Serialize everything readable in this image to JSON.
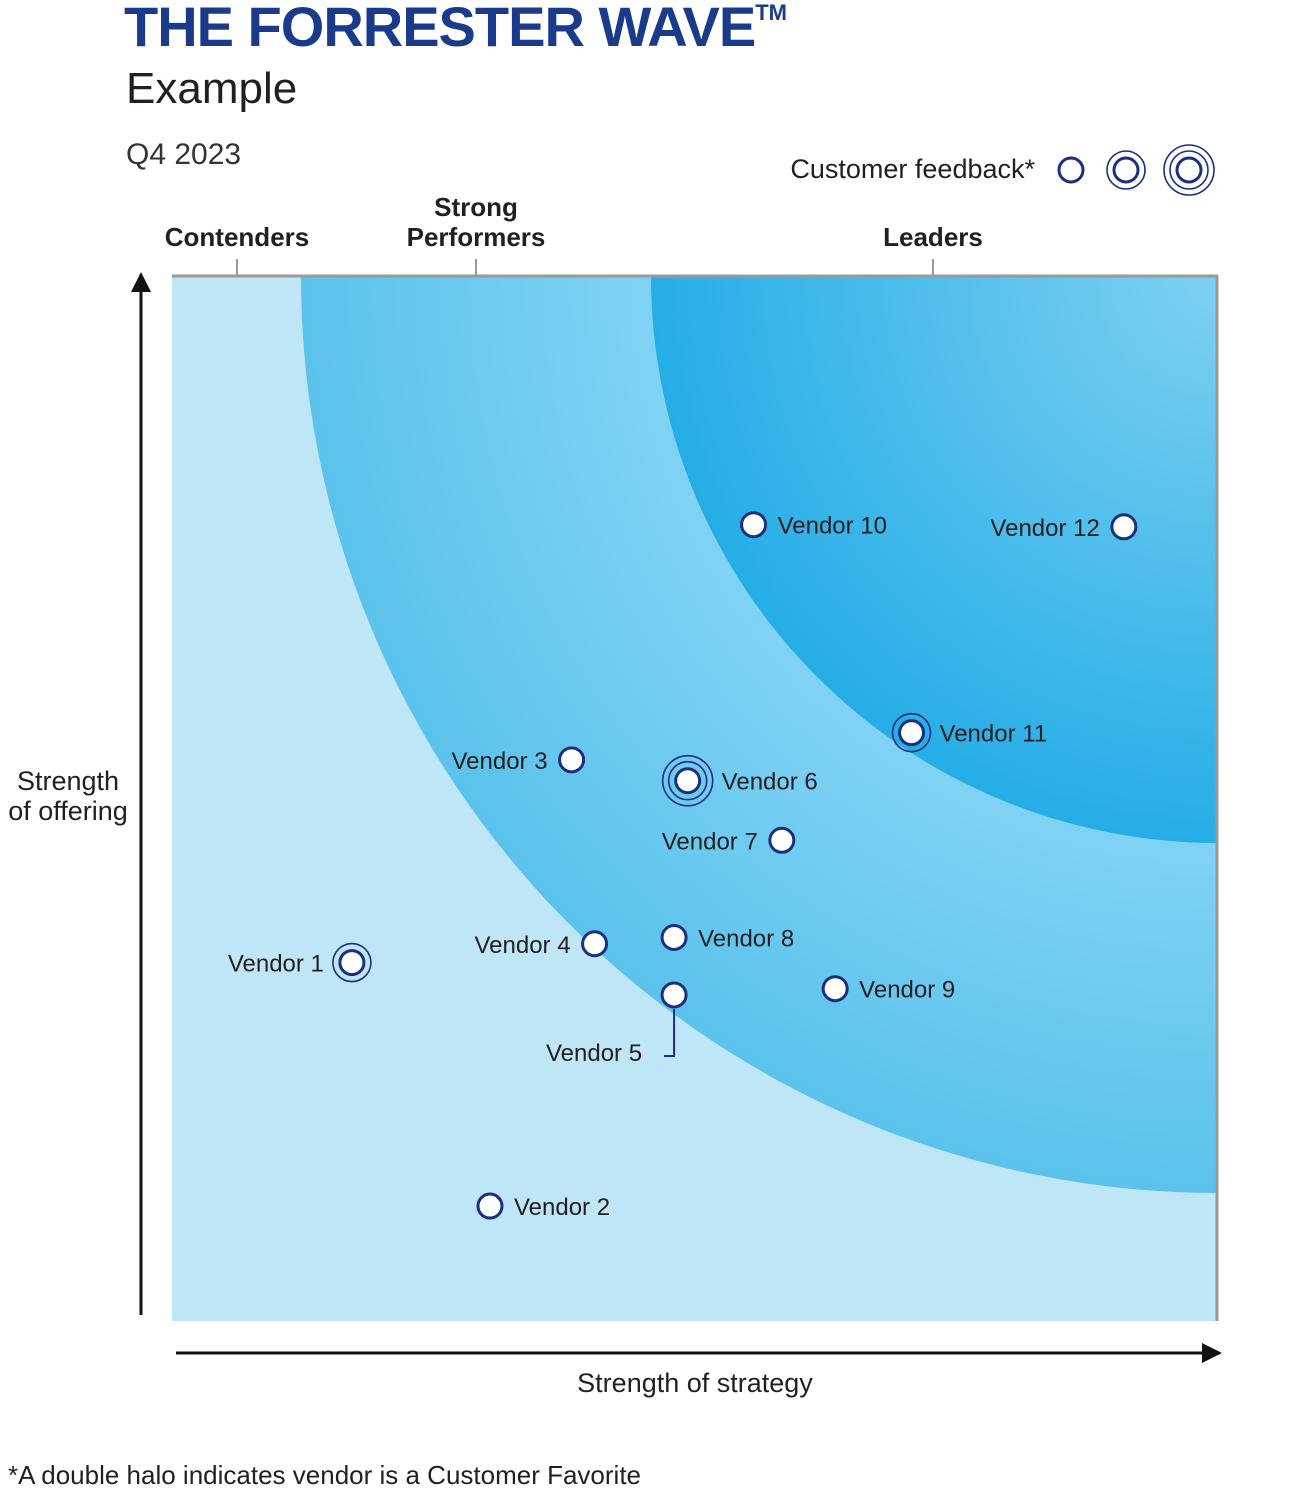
{
  "header": {
    "title": "THE FORRESTER WAVE",
    "trademark": "TM",
    "subtitle": "Example",
    "quarter": "Q4 2023"
  },
  "legend": {
    "label": "Customer feedback*",
    "levels": [
      "single",
      "halo",
      "double-halo"
    ]
  },
  "categories": [
    {
      "line1": "",
      "line2": "Contenders"
    },
    {
      "line1": "Strong",
      "line2": "Performers"
    },
    {
      "line1": "",
      "line2": "Leaders"
    }
  ],
  "footnote": "*A double halo indicates vendor is a Customer Favorite",
  "colors": {
    "marker": "#1a2f80",
    "title": "#1a3a8a",
    "zone_contenders": "#bfe6f6",
    "zone_strong": "#6ec8ee",
    "zone_leaders": "#3db5e8"
  },
  "chart_data": {
    "type": "scatter",
    "xlabel": "Strength of strategy",
    "ylabel_line1": "Strength",
    "ylabel_line2": "of offering",
    "xlim": [
      0,
      100
    ],
    "ylim": [
      0,
      100
    ],
    "points": [
      {
        "name": "Vendor 1",
        "x": 17.2,
        "y": 34.3,
        "feedback": 2,
        "label": "left"
      },
      {
        "name": "Vendor 2",
        "x": 30.4,
        "y": 11.0,
        "feedback": 1,
        "label": "right"
      },
      {
        "name": "Vendor 3",
        "x": 38.2,
        "y": 53.7,
        "feedback": 1,
        "label": "left"
      },
      {
        "name": "Vendor 4",
        "x": 40.4,
        "y": 36.1,
        "feedback": 1,
        "label": "left"
      },
      {
        "name": "Vendor 5",
        "x": 48.0,
        "y": 31.2,
        "feedback": 1,
        "label": "below-left"
      },
      {
        "name": "Vendor 6",
        "x": 49.3,
        "y": 51.7,
        "feedback": 3,
        "label": "right"
      },
      {
        "name": "Vendor 7",
        "x": 58.3,
        "y": 46.0,
        "feedback": 1,
        "label": "left"
      },
      {
        "name": "Vendor 8",
        "x": 48.0,
        "y": 36.7,
        "feedback": 1,
        "label": "right"
      },
      {
        "name": "Vendor 9",
        "x": 63.4,
        "y": 31.8,
        "feedback": 1,
        "label": "right"
      },
      {
        "name": "Vendor 10",
        "x": 55.6,
        "y": 76.2,
        "feedback": 1,
        "label": "right"
      },
      {
        "name": "Vendor 11",
        "x": 70.7,
        "y": 56.3,
        "feedback": 2,
        "label": "right"
      },
      {
        "name": "Vendor 12",
        "x": 91.0,
        "y": 76.0,
        "feedback": 1,
        "label": "left"
      }
    ]
  }
}
